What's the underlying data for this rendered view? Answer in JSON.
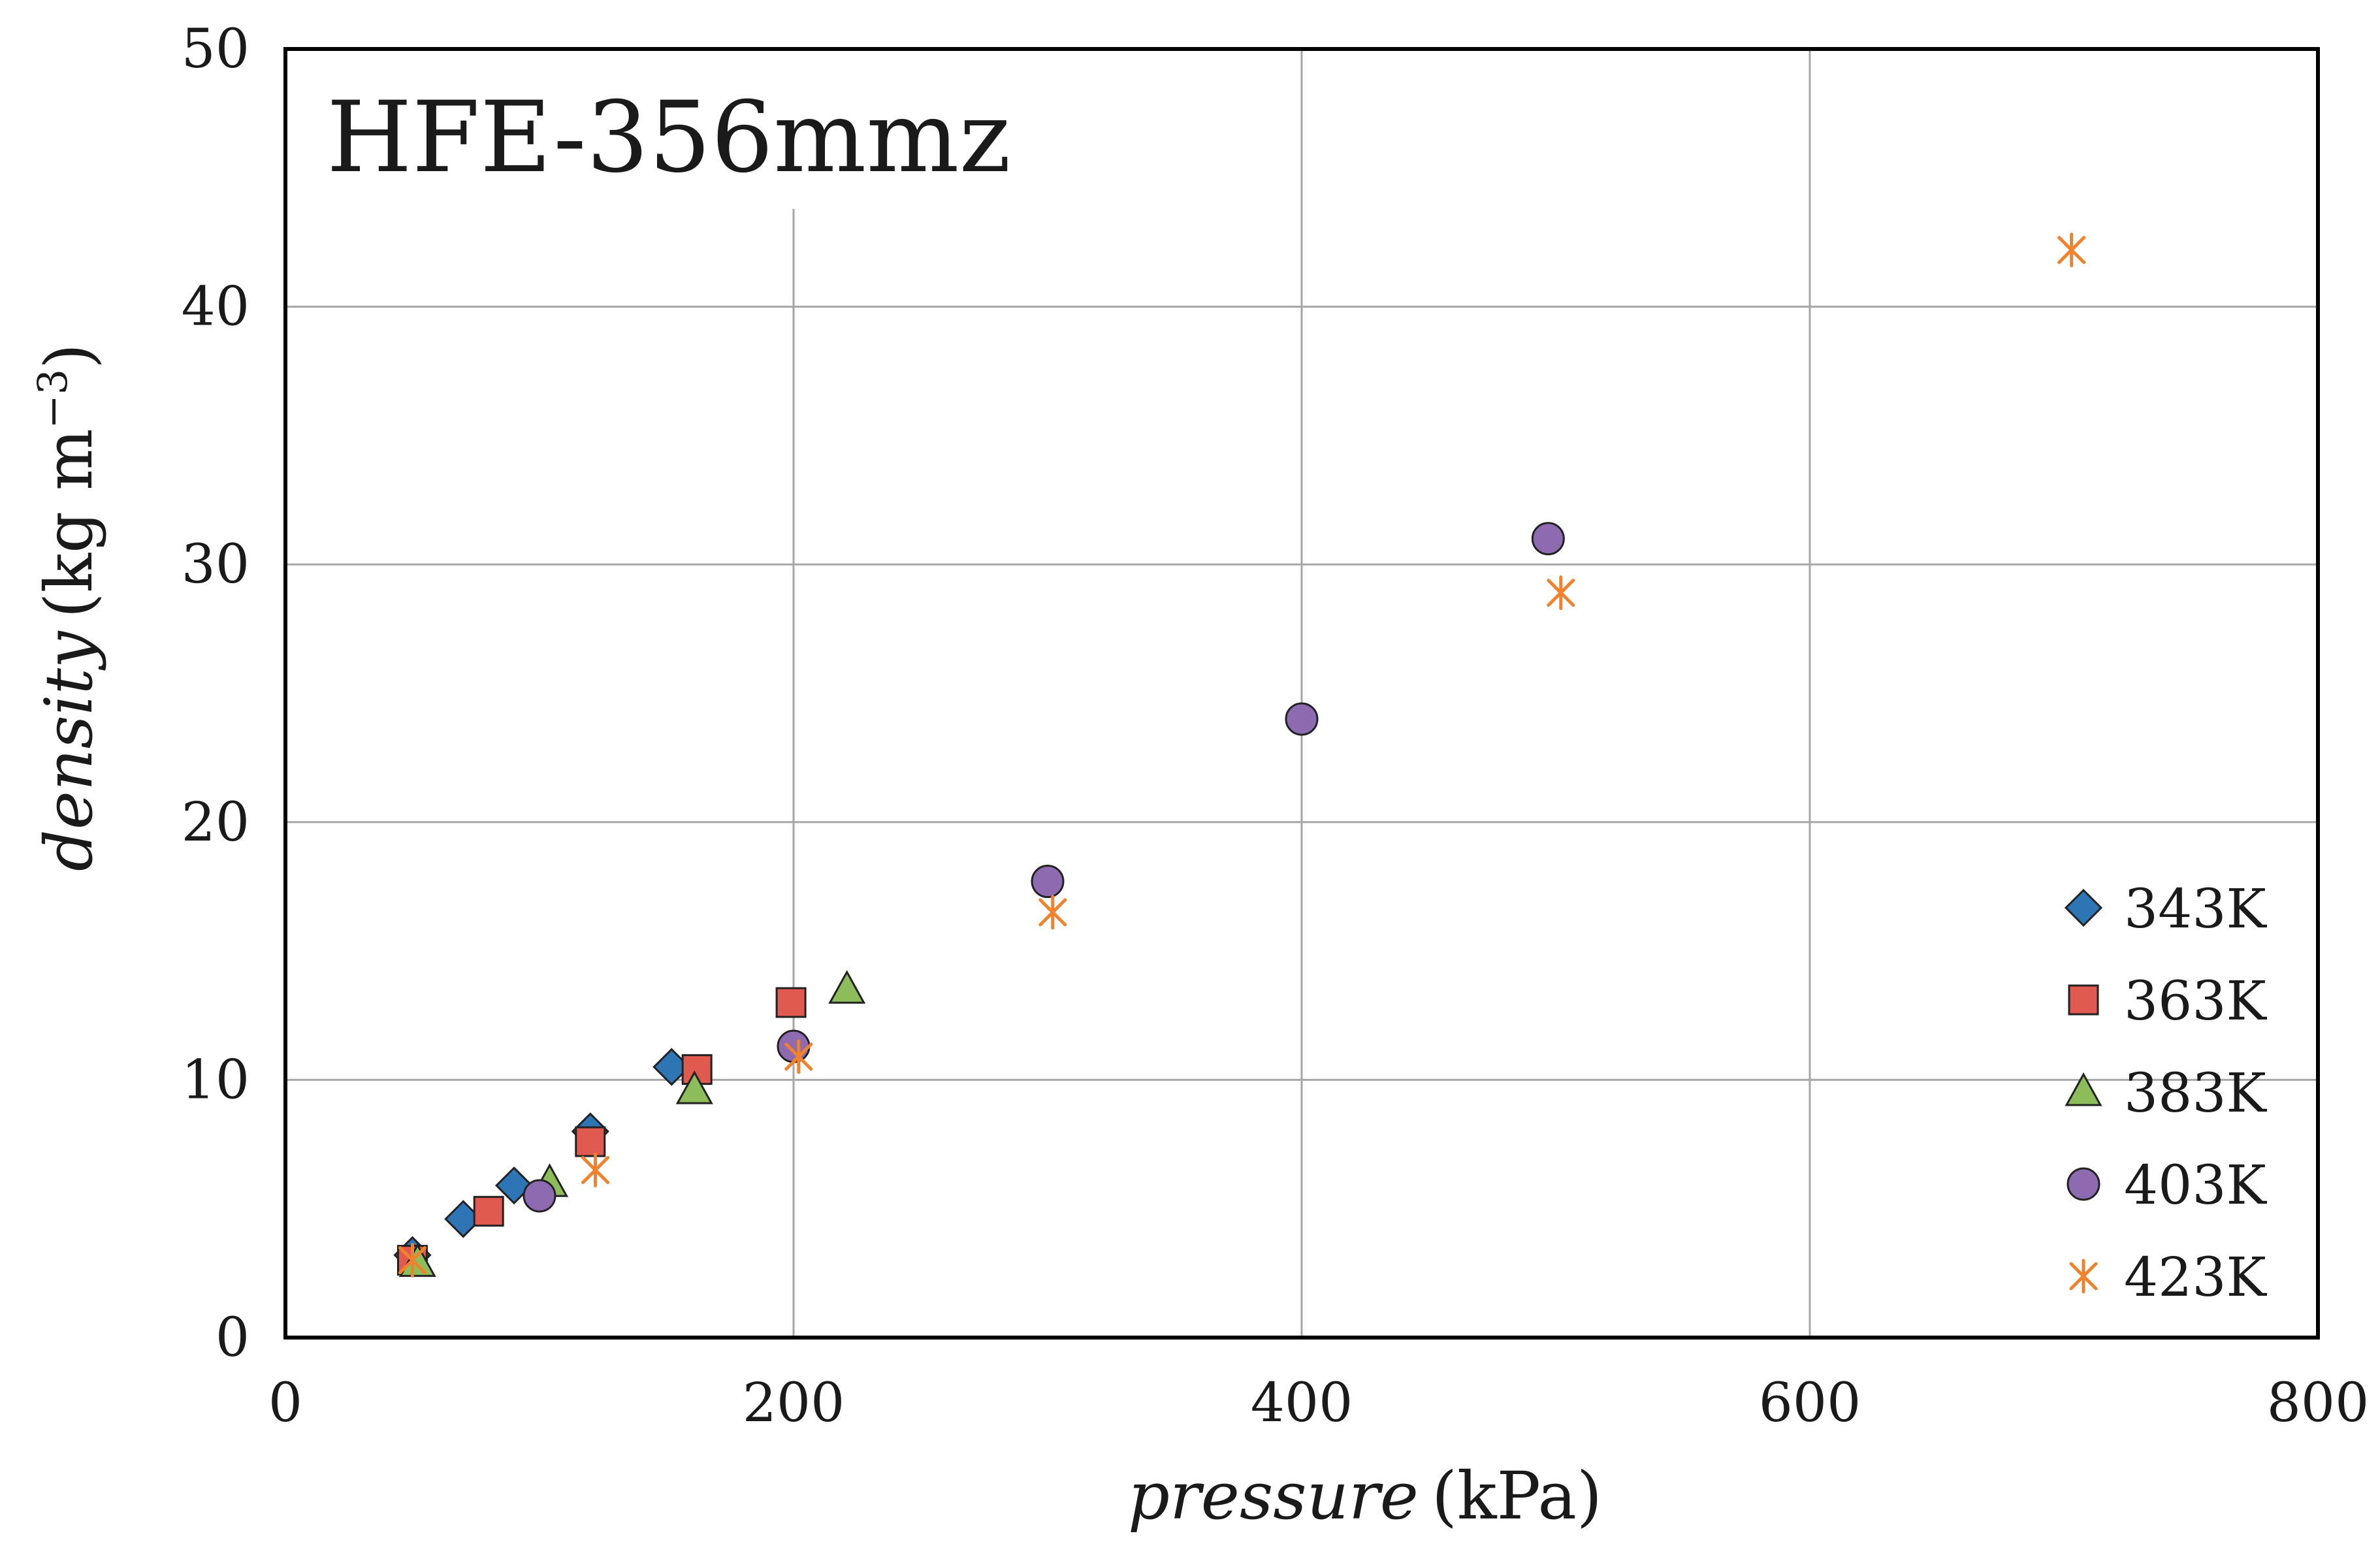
{
  "chart_data": {
    "type": "scatter",
    "title": "HFE-356mmz",
    "xlabel_italic": "pressure",
    "xlabel_unit": "(kPa)",
    "ylabel_italic": "density",
    "ylabel_unit_prefix": "(kg m",
    "ylabel_unit_exp": "−3",
    "ylabel_unit_suffix": ")",
    "xlim": [
      0,
      800
    ],
    "ylim": [
      0,
      50
    ],
    "xticks": [
      0,
      200,
      400,
      600,
      800
    ],
    "yticks": [
      0,
      10,
      20,
      30,
      40,
      50
    ],
    "grid": true,
    "legend_position": "bottom-right",
    "series": [
      {
        "name": "343K",
        "marker": "diamond",
        "color": "#2e75b6",
        "fit_curvature": 0.000375,
        "fit_slope": 0.0638,
        "points": [
          [
            50,
            3.2
          ],
          [
            70,
            4.6
          ],
          [
            90,
            5.9
          ],
          [
            120,
            8.0
          ],
          [
            152,
            10.5
          ]
        ]
      },
      {
        "name": "363K",
        "marker": "square",
        "color": "#e05a4f",
        "fit_curvature": 0.000224,
        "fit_slope": 0.0606,
        "points": [
          [
            50,
            3.0
          ],
          [
            80,
            4.9
          ],
          [
            120,
            7.6
          ],
          [
            162,
            10.4
          ],
          [
            199,
            13.0
          ]
        ]
      },
      {
        "name": "383K",
        "marker": "triangle",
        "color": "#8cbd5a",
        "fit_curvature": 0.000133,
        "fit_slope": 0.0575,
        "points": [
          [
            52,
            2.9
          ],
          [
            104,
            6.0
          ],
          [
            161,
            9.6
          ],
          [
            221,
            13.5
          ]
        ]
      },
      {
        "name": "403K",
        "marker": "circle",
        "color": "#8e6bb0",
        "fit_curvature": 7.55e-05,
        "fit_slope": 0.0551,
        "points": [
          [
            100,
            5.5
          ],
          [
            200,
            11.3
          ],
          [
            300,
            17.7
          ],
          [
            400,
            24.0
          ],
          [
            497,
            31.0
          ]
        ]
      },
      {
        "name": "423K",
        "marker": "asterisk",
        "color": "#f0822d",
        "fit_curvature": 4.34e-05,
        "fit_slope": 0.0536,
        "points": [
          [
            50,
            3.0
          ],
          [
            122,
            6.5
          ],
          [
            202,
            10.9
          ],
          [
            302,
            16.5
          ],
          [
            502,
            28.9
          ],
          [
            703,
            42.2
          ]
        ]
      }
    ]
  }
}
